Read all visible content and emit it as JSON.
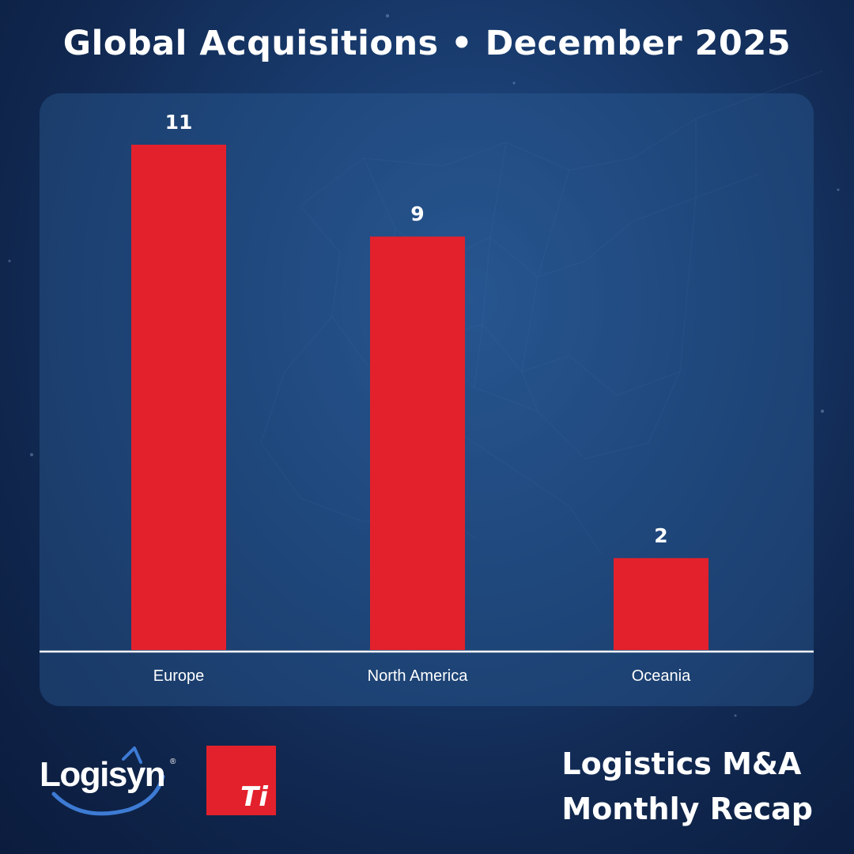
{
  "title": "Global Acquisitions • December 2025",
  "chart_data": {
    "type": "bar",
    "title": "Global Acquisitions • December 2025",
    "categories": [
      "Europe",
      "North America",
      "Oceania"
    ],
    "values": [
      11,
      9,
      2
    ],
    "xlabel": "",
    "ylabel": "",
    "ylim": [
      0,
      11
    ],
    "grid": false,
    "data_labels": true,
    "bar_color": "#e3212c",
    "axis_color": "#ffffff"
  },
  "logos": {
    "logisyn": "Logisyn",
    "logisyn_mark": "®",
    "ti": "Ti"
  },
  "footer": {
    "line1": "Logistics M&A",
    "line2": "Monthly Recap"
  },
  "colors": {
    "background": "#10264d",
    "accent": "#e3212c",
    "text": "#ffffff"
  }
}
